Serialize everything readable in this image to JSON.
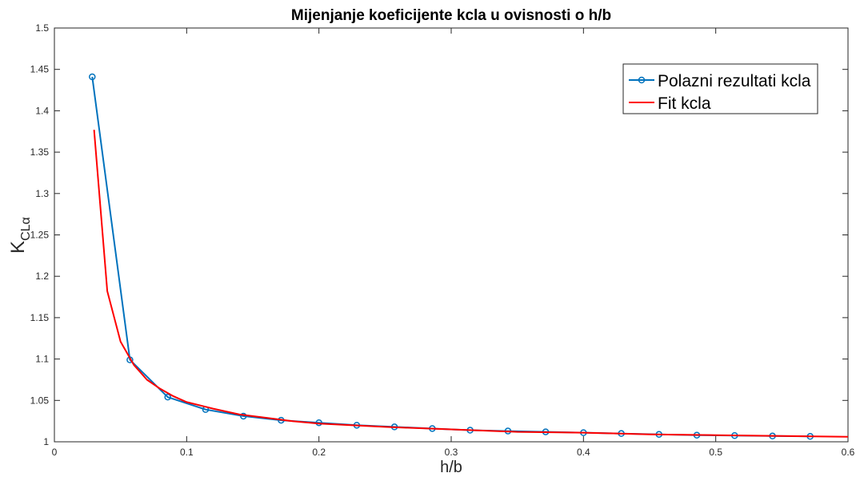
{
  "chart_data": {
    "type": "line",
    "title": "Mijenjanje koeficijente kcla u ovisnosti o h/b",
    "xlabel": "h/b",
    "ylabel": {
      "main": "K",
      "sub": "CLα"
    },
    "xlim": [
      0,
      0.6
    ],
    "ylim": [
      1,
      1.5
    ],
    "xticks": [
      0,
      0.1,
      0.2,
      0.3,
      0.4,
      0.5,
      0.6
    ],
    "xtick_labels": [
      "0",
      "0.1",
      "0.2",
      "0.3",
      "0.4",
      "0.5",
      "0.6"
    ],
    "yticks": [
      1,
      1.05,
      1.1,
      1.15,
      1.2,
      1.25,
      1.3,
      1.35,
      1.4,
      1.45,
      1.5
    ],
    "ytick_labels": [
      "1",
      "1.05",
      "1.1",
      "1.15",
      "1.2",
      "1.25",
      "1.3",
      "1.35",
      "1.4",
      "1.45",
      "1.5"
    ],
    "grid": false,
    "legend_position": "top-right",
    "series": [
      {
        "name": "Polazni rezultati kcla",
        "color": "#0072BD",
        "marker": "circle",
        "x": [
          0.0286,
          0.0571,
          0.0857,
          0.1143,
          0.1429,
          0.1714,
          0.2,
          0.2286,
          0.2571,
          0.2857,
          0.3143,
          0.3429,
          0.3714,
          0.4,
          0.4286,
          0.4571,
          0.4857,
          0.5143,
          0.5429,
          0.5714
        ],
        "y": [
          1.441,
          1.099,
          1.054,
          1.039,
          1.031,
          1.026,
          1.023,
          1.02,
          1.018,
          1.016,
          1.014,
          1.013,
          1.012,
          1.011,
          1.01,
          1.009,
          1.008,
          1.0075,
          1.007,
          1.0065
        ]
      },
      {
        "name": "Fit kcla",
        "color": "#FF0000",
        "marker": "none",
        "x": [
          0.03,
          0.04,
          0.05,
          0.06,
          0.07,
          0.08,
          0.09,
          0.1,
          0.12,
          0.14,
          0.16,
          0.18,
          0.2,
          0.25,
          0.3,
          0.35,
          0.4,
          0.45,
          0.5,
          0.55,
          0.6
        ],
        "y": [
          1.377,
          1.182,
          1.121,
          1.093,
          1.075,
          1.064,
          1.055,
          1.048,
          1.04,
          1.033,
          1.029,
          1.025,
          1.022,
          1.018,
          1.015,
          1.012,
          1.011,
          1.009,
          1.008,
          1.007,
          1.006
        ]
      }
    ]
  }
}
